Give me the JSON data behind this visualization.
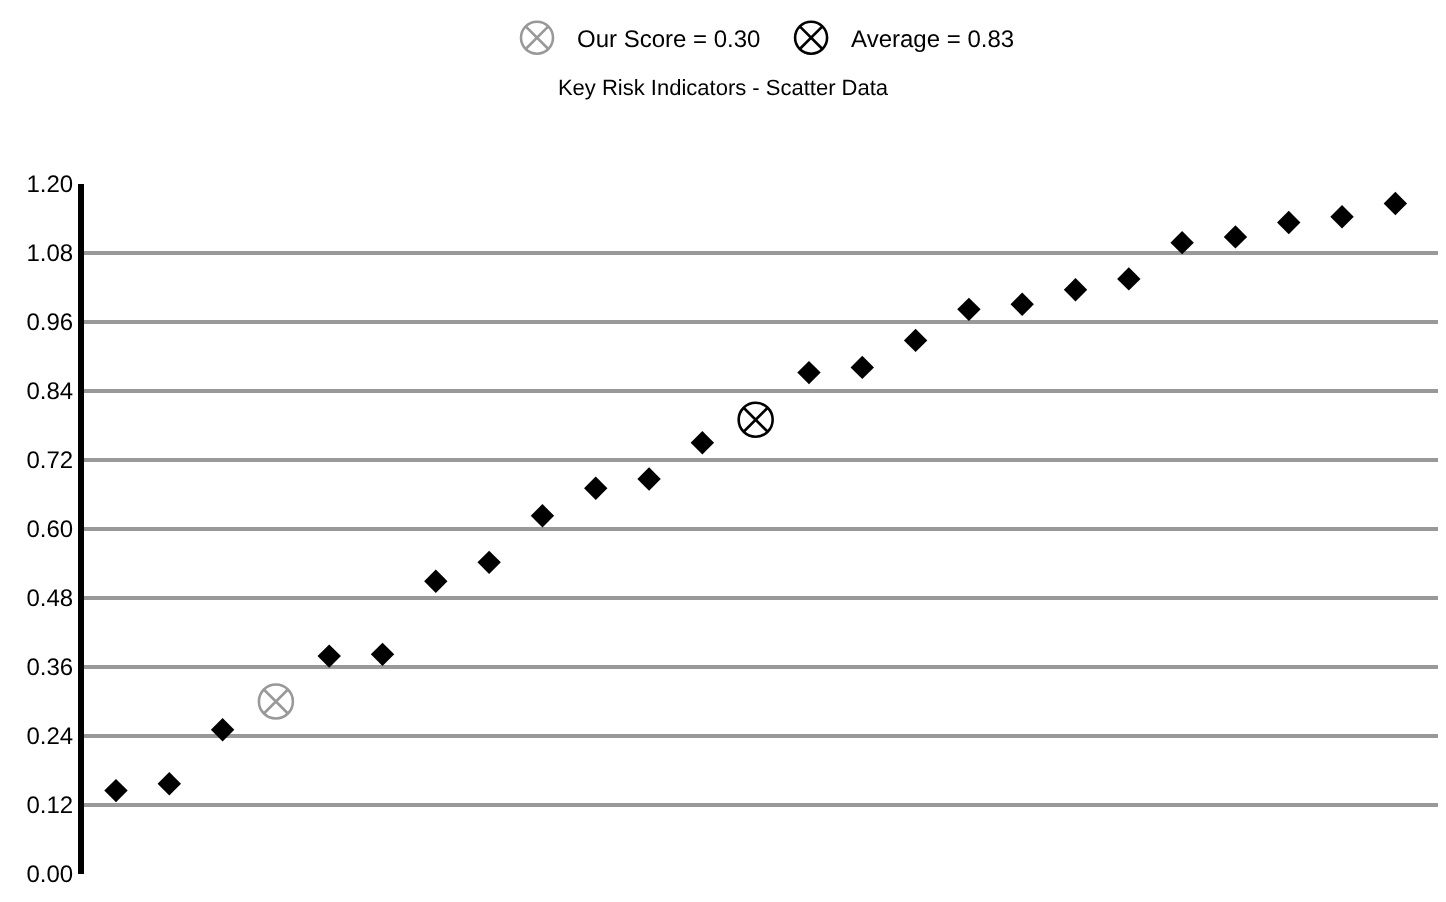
{
  "chart_data": {
    "type": "scatter",
    "title": "Key Risk Indicators - Scatter Data",
    "categories": [
      null,
      null,
      null,
      null,
      null,
      null,
      null,
      null,
      null,
      null,
      null,
      null,
      null,
      null,
      null,
      null,
      null,
      null,
      null,
      null,
      null,
      null,
      null,
      null,
      null
    ],
    "series": [
      {
        "color": "#000000",
        "marker": "diamond",
        "values": [
          0.145,
          0.157,
          0.251,
          null,
          0.379,
          0.382,
          0.509,
          0.542,
          0.623,
          0.671,
          0.687,
          0.75,
          null,
          0.872,
          0.881,
          0.928,
          0.982,
          0.991,
          1.016,
          1.035,
          1.098,
          1.108,
          1.133,
          1.143,
          1.166
        ]
      },
      {
        "name": "Our Score = 0.30",
        "color": "#999999",
        "marker": "cross",
        "values": [
          null,
          null,
          null,
          0.3,
          null,
          null,
          null,
          null,
          null,
          null,
          null,
          null,
          null,
          null,
          null,
          null,
          null,
          null,
          null,
          null,
          null,
          null,
          null,
          null,
          null
        ]
      },
      {
        "name": "Average = 0.83",
        "color": "#000000",
        "marker": "cross",
        "values": [
          null,
          null,
          null,
          null,
          null,
          null,
          null,
          null,
          null,
          null,
          null,
          null,
          0.79,
          null,
          null,
          null,
          null,
          null,
          null,
          null,
          null,
          null,
          null,
          null,
          null
        ]
      }
    ],
    "ylim": [
      0,
      1.2
    ],
    "yticks": [
      {
        "value": 0,
        "label": "0.00"
      },
      {
        "value": 0.12,
        "label": "0.12"
      },
      {
        "value": 0.24,
        "label": "0.24"
      },
      {
        "value": 0.36,
        "label": "0.36"
      },
      {
        "value": 0.48,
        "label": "0.48"
      },
      {
        "value": 0.6,
        "label": "0.60"
      },
      {
        "value": 0.72,
        "label": "0.72"
      },
      {
        "value": 0.84,
        "label": "0.84"
      },
      {
        "value": 0.96,
        "label": "0.96"
      },
      {
        "value": 1.08,
        "label": "1.08"
      },
      {
        "value": 1.2,
        "label": "1.20"
      }
    ],
    "grid": "y",
    "legend": "top",
    "tick_labels": "y"
  }
}
